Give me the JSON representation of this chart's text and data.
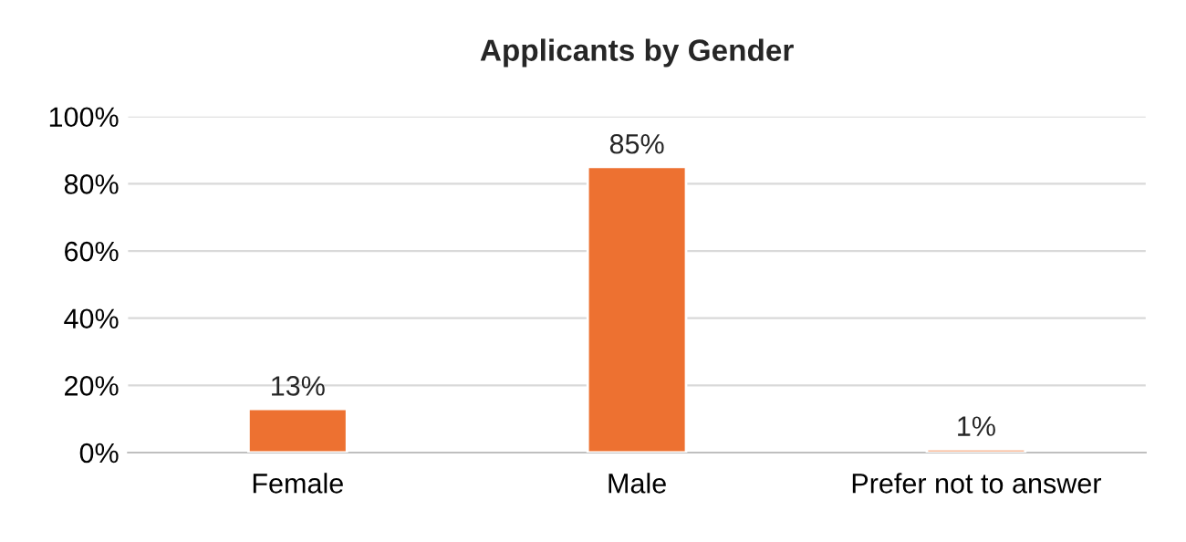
{
  "chart_data": {
    "type": "bar",
    "title": "Applicants by Gender",
    "categories": [
      "Female",
      "Male",
      "Prefer not to answer"
    ],
    "values": [
      13,
      85,
      1
    ],
    "color": "#ed7131",
    "value_labels": [
      "13%",
      "85%",
      "1%"
    ],
    "ylim": [
      0,
      100
    ],
    "yticks": [
      {
        "value": 0,
        "label": "0%"
      },
      {
        "value": 20,
        "label": "20%"
      },
      {
        "value": 40,
        "label": "40%"
      },
      {
        "value": 60,
        "label": "60%"
      },
      {
        "value": 80,
        "label": "80%"
      },
      {
        "value": 100,
        "label": "100%"
      }
    ],
    "grid": "y",
    "legend": false
  }
}
